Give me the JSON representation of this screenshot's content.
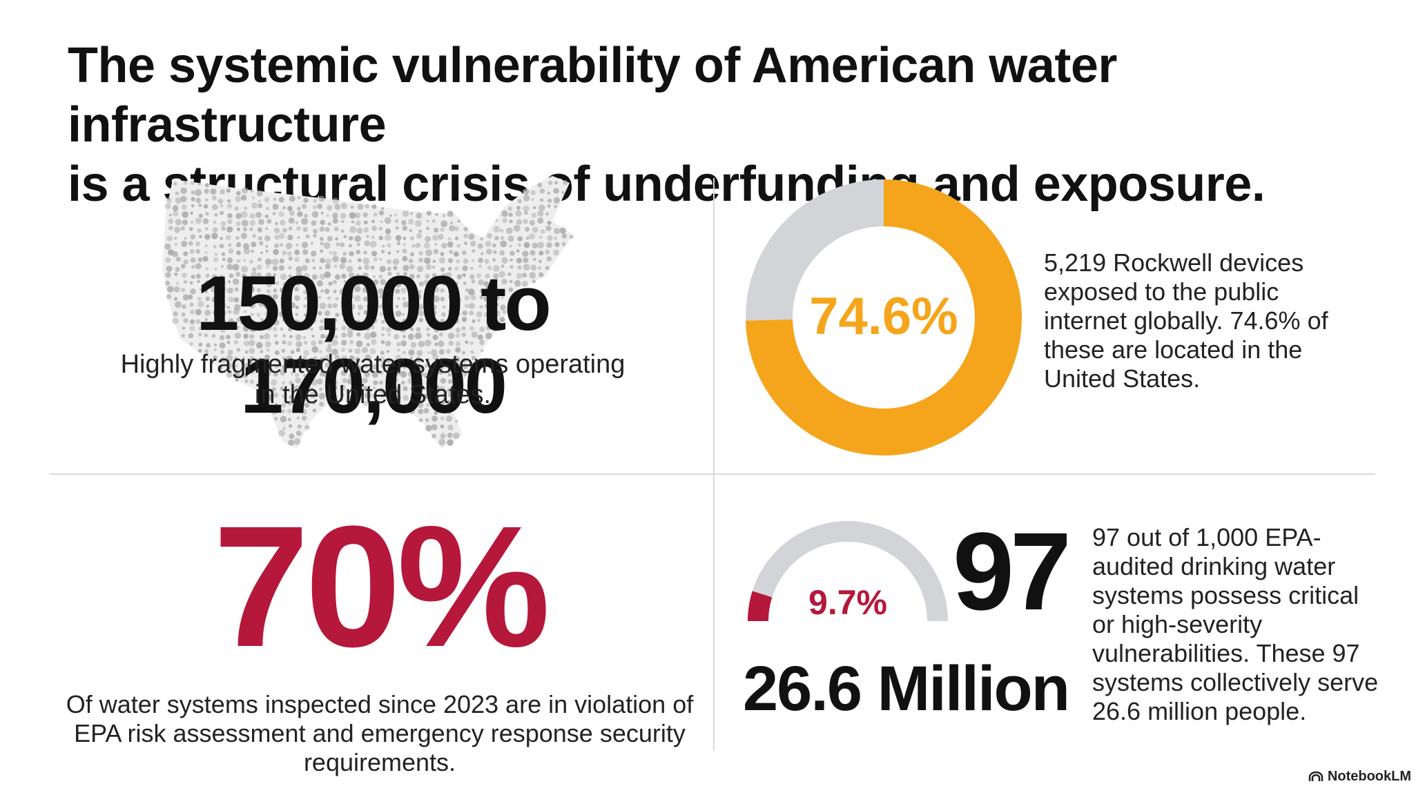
{
  "title": {
    "line1": "The systemic vulnerability of American water infrastructure",
    "line2": "is a structural crisis of underfunding and exposure."
  },
  "panels": {
    "water_systems": {
      "stat": "150,000 to 170,000",
      "description": "Highly fragmented water systems operating in the United States.",
      "icon": "us-map-dots",
      "map_color": "#a9a9a9"
    },
    "rockwell": {
      "value_label": "74.6%",
      "percent": 74.6,
      "description": "5,219 Rockwell devices exposed to the public internet globally. 74.6% of these are located in the United States.",
      "accent_color": "#f5a51b",
      "track_color": "#d3d4d8"
    },
    "epa_violations": {
      "stat": "70%",
      "description": "Of water systems inspected since 2023 are in violation of EPA risk assessment and emergency response security requirements.",
      "accent_color": "#b5183a"
    },
    "critical_vulnerabilities": {
      "gauge_label": "9.7%",
      "percent": 9.7,
      "count": "97",
      "population": "26.6 Million",
      "description": "97 out of 1,000 EPA-audited drinking water systems possess critical or high-severity vulnerabilities. These 97 systems collectively serve 26.6 million people.",
      "accent_color": "#b5183a",
      "track_color": "#d3d4d8"
    }
  },
  "brand": {
    "name": "NotebookLM",
    "icon": "notebooklm-logo-icon"
  }
}
